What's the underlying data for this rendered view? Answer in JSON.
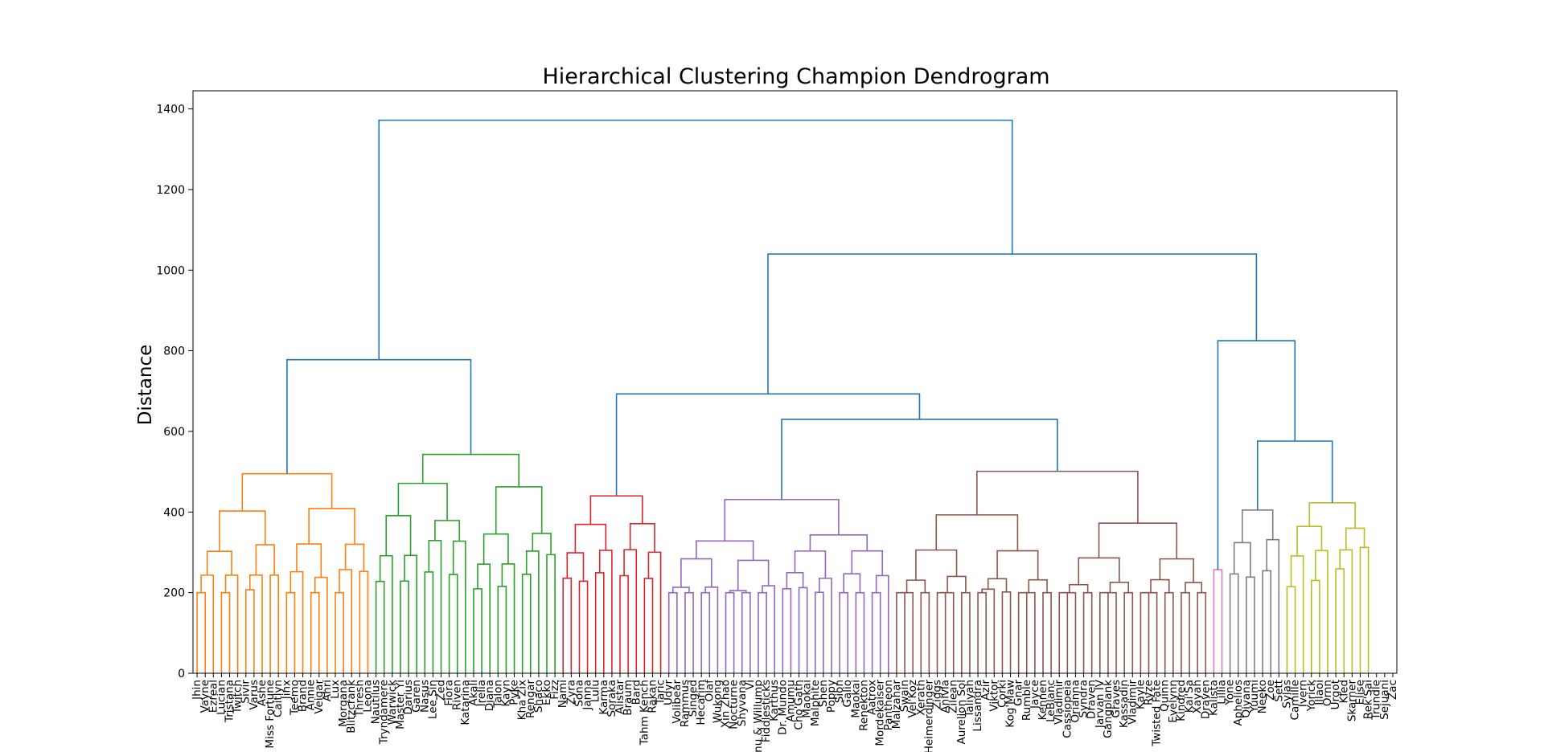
{
  "chart_data": {
    "type": "dendrogram",
    "title": "Hierarchical Clustering Champion Dendrogram",
    "xlabel": "",
    "ylabel": "Distance",
    "ylim": [
      0,
      1445
    ],
    "yticks": [
      0,
      200,
      400,
      600,
      800,
      1000,
      1200,
      1400
    ],
    "grid": false,
    "leaves": [
      "Jhin",
      "Vayne",
      "Ezreal",
      "Lucian",
      "Tristana",
      "Twitch",
      "Sivir",
      "Varus",
      "Ashe",
      "Miss Fortune",
      "Caitlyn",
      "Jinx",
      "Teemo",
      "Brand",
      "Annie",
      "Veigar",
      "Ahri",
      "Lux",
      "Morgana",
      "Blitzcrank",
      "Thresh",
      "Leona",
      "Nautilus",
      "Tryndamere",
      "Warwick",
      "Master Yi",
      "Darius",
      "Garen",
      "Nasus",
      "Lee Sin",
      "Zed",
      "Fiora",
      "Riven",
      "Katarina",
      "Akali",
      "Irelia",
      "Diana",
      "Talon",
      "Kayn",
      "Pyke",
      "Kha'Zix",
      "Rengar",
      "Shaco",
      "Ekko",
      "Fizz",
      "Nami",
      "Zyra",
      "Sona",
      "Janna",
      "Lulu",
      "Karma",
      "Soraka",
      "Alistar",
      "Braum",
      "Bard",
      "Tahm Kench",
      "Rakan",
      "Taric",
      "Udyr",
      "Volibear",
      "Rammus",
      "Singed",
      "Hecarim",
      "Olaf",
      "Wukong",
      "Xin Zhao",
      "Nocturne",
      "Shyvana",
      "Vi",
      "Nunu & Willump",
      "Fiddlesticks",
      "Karthus",
      "Dr. Mundo",
      "Amumu",
      "Cho'Gath",
      "Maokai",
      "Malphite",
      "Shen",
      "Poppy",
      "Sion",
      "Galio",
      "Maokai",
      "Renekton",
      "Aatrox",
      "Mordekaiser",
      "Pantheon",
      "Malzahar",
      "Swain",
      "Vel'Koz",
      "Xerath",
      "Heimerdinger",
      "Ziggs",
      "Anivia",
      "Zilean",
      "Aurelion Sol",
      "Taliyah",
      "Lissandra",
      "Azir",
      "Viktor",
      "Corki",
      "Kog'Maw",
      "Gnar",
      "Rumble",
      "Jayce",
      "Kennen",
      "LeBlanc",
      "Vladimir",
      "Cassiopeia",
      "Orianna",
      "Syndra",
      "Draven",
      "Jarvan IV",
      "Gangplank",
      "Graves",
      "Kassadin",
      "Vladimir",
      "Kayle",
      "Ryze",
      "Twisted Fate",
      "Quinn",
      "Evelynn",
      "Kindred",
      "Kai'Sa",
      "Xayah",
      "Draven",
      "Kalista",
      "Lillia",
      "Yone",
      "Aphelios",
      "Qiyana",
      "Yuumi",
      "Neeko",
      "Zoe",
      "Sett",
      "Sylas",
      "Camille",
      "Ivern",
      "Yorick",
      "Illaoi",
      "Ornn",
      "Urgot",
      "Kled",
      "Skarner",
      "Elise",
      "Rek'Sai",
      "Trundle",
      "Sejuani",
      "Zac"
    ],
    "clusters": [
      {
        "color": "#ff7f0e",
        "leaf_range": [
          0,
          21
        ],
        "height": 495
      },
      {
        "color": "#2ca02c",
        "leaf_range": [
          22,
          44
        ],
        "height": 543
      },
      {
        "color": "#d62728",
        "leaf_range": [
          45,
          57
        ],
        "height": 440
      },
      {
        "color": "#9467bd",
        "leaf_range": [
          58,
          85
        ],
        "height": 431
      },
      {
        "color": "#8c564b",
        "leaf_range": [
          86,
          124
        ],
        "height": 501
      },
      {
        "color": "#e377c2",
        "leaf_range": [
          125,
          126
        ],
        "height": 257
      },
      {
        "color": "#7f7f7f",
        "leaf_range": [
          127,
          133
        ],
        "height": 405
      },
      {
        "color": "#bcbd22",
        "leaf_range": [
          134,
          144
        ],
        "height": 423
      }
    ],
    "top_merges": [
      {
        "left": "orange",
        "right": "green",
        "height": 778
      },
      {
        "left": "purple",
        "right": "brown",
        "height": 630
      },
      {
        "left": "red",
        "right": "purple+brown",
        "height": 693
      },
      {
        "left": "gray",
        "right": "olive",
        "height": 576
      },
      {
        "left": "pink",
        "right": "gray+olive",
        "height": 825
      },
      {
        "left": "red+purple+brown",
        "right": "pink+gray+olive",
        "height": 1040
      },
      {
        "left": "orange+green",
        "right": "rest",
        "height": 1372
      }
    ],
    "link_color": "#1f77b4"
  }
}
